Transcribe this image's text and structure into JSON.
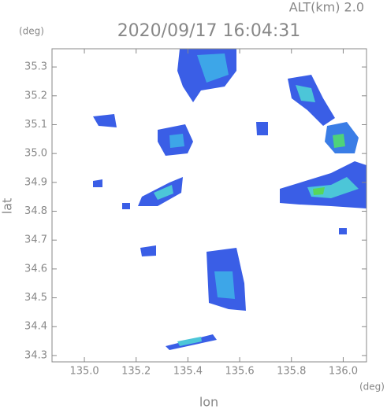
{
  "chart_data": {
    "type": "radar-map",
    "title": "2020/09/17 16:04:31",
    "subtitle": "ALT(km) 2.0",
    "x_label": "lon",
    "y_label": "lat",
    "x_unit": "(deg)",
    "y_unit": "(deg)",
    "xlim": [
      134.875,
      136.09
    ],
    "ylim": [
      34.278,
      35.363
    ],
    "xticks": [
      {
        "value": 135,
        "label": "135.0"
      },
      135.2,
      135.4,
      135.6,
      135.8,
      {
        "value": 136,
        "label": "136.0"
      }
    ],
    "yticks": [
      34.3,
      34.4,
      34.5,
      34.6,
      34.7,
      34.8,
      34.9,
      {
        "value": 35,
        "label": "35.0"
      },
      35.1,
      35.2,
      35.3
    ]
  }
}
